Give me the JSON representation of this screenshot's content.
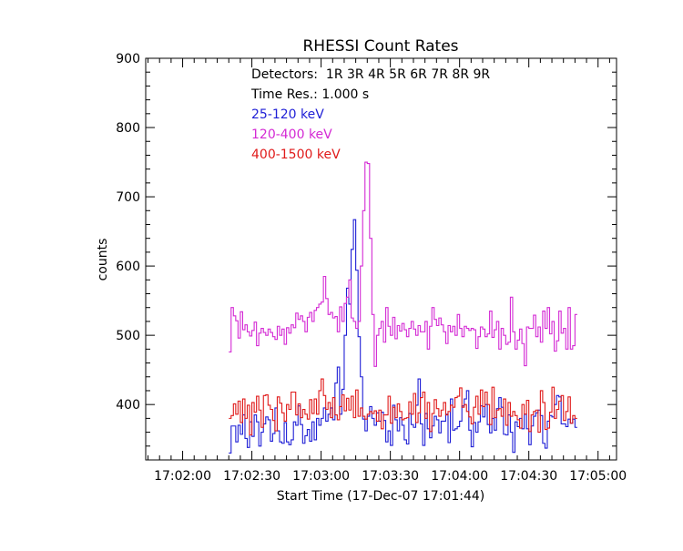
{
  "chart_data": {
    "type": "line",
    "title": "RHESSI Count Rates",
    "xlabel": "Start Time (17-Dec-07 17:01:44)",
    "ylabel": "counts",
    "x_unit": "seconds after 17:01:44",
    "xlim": [
      0,
      204
    ],
    "ylim": [
      320,
      900
    ],
    "x_ticks": [
      {
        "t": 16,
        "label": "17:02:00"
      },
      {
        "t": 46,
        "label": "17:02:30"
      },
      {
        "t": 76,
        "label": "17:03:00"
      },
      {
        "t": 106,
        "label": "17:03:30"
      },
      {
        "t": 136,
        "label": "17:04:00"
      },
      {
        "t": 166,
        "label": "17:04:30"
      },
      {
        "t": 196,
        "label": "17:05:00"
      }
    ],
    "y_ticks": [
      400,
      500,
      600,
      700,
      800,
      900
    ],
    "grid": false,
    "legend_position": "top-left (inside)",
    "annotations": {
      "detectors": "Detectors:  1R 3R 4R 5R 6R 7R 8R 9R",
      "time_res": "Time Res.: 1.000 s"
    },
    "series": [
      {
        "name": "25-120 keV",
        "color": "#1f1fd6",
        "x_start": 36,
        "values": [
          330,
          369,
          369,
          346,
          370,
          357,
          385,
          351,
          338,
          375,
          354,
          385,
          375,
          340,
          360,
          372,
          382,
          378,
          347,
          358,
          395,
          362,
          346,
          344,
          374,
          346,
          342,
          349,
          375,
          370,
          398,
          371,
          344,
          355,
          364,
          347,
          375,
          349,
          380,
          370,
          380,
          395,
          376,
          386,
          395,
          378,
          431,
          454,
          386,
          422,
          500,
          568,
          545,
          624,
          667,
          594,
          498,
          440,
          379,
          362,
          383,
          397,
          380,
          370,
          388,
          376,
          389,
          377,
          346,
          362,
          341,
          399,
          378,
          362,
          381,
          370,
          349,
          343,
          387,
          371,
          367,
          399,
          437,
          372,
          341,
          387,
          365,
          352,
          369,
          383,
          378,
          359,
          376,
          376,
          386,
          345,
          408,
          363,
          365,
          368,
          376,
          398,
          408,
          420,
          363,
          339,
          374,
          360,
          375,
          398,
          382,
          400,
          371,
          359,
          380,
          363,
          394,
          410,
          396,
          357,
          356,
          385,
          360,
          331,
          375,
          368,
          380,
          365,
          386,
          365,
          342,
          369,
          383,
          388,
          392,
          384,
          344,
          337,
          376,
          384,
          382,
          400,
          413,
          411,
          372,
          372,
          368,
          379,
          373,
          379,
          367
        ]
      },
      {
        "name": "120-400 keV",
        "color": "#d42ad4",
        "x_start": 36,
        "values": [
          476,
          540,
          528,
          521,
          496,
          534,
          508,
          515,
          505,
          499,
          507,
          519,
          485,
          503,
          510,
          504,
          500,
          509,
          504,
          498,
          494,
          513,
          500,
          509,
          487,
          511,
          503,
          515,
          511,
          532,
          523,
          528,
          520,
          505,
          526,
          533,
          520,
          536,
          540,
          545,
          548,
          585,
          553,
          530,
          533,
          525,
          527,
          505,
          541,
          520,
          546,
          555,
          580,
          525,
          520,
          510,
          520,
          600,
          680,
          750,
          748,
          640,
          530,
          455,
          500,
          510,
          520,
          490,
          540,
          513,
          500,
          526,
          495,
          514,
          506,
          517,
          508,
          498,
          510,
          520,
          509,
          500,
          514,
          505,
          505,
          520,
          480,
          513,
          540,
          523,
          514,
          525,
          515,
          505,
          488,
          514,
          505,
          513,
          500,
          530,
          510,
          498,
          513,
          510,
          507,
          510,
          508,
          481,
          498,
          512,
          509,
          498,
          502,
          535,
          497,
          508,
          520,
          480,
          510,
          500,
          487,
          490,
          555,
          505,
          480,
          493,
          509,
          488,
          456,
          512,
          510,
          510,
          529,
          498,
          512,
          490,
          535,
          510,
          540,
          502,
          520,
          477,
          492,
          535,
          503,
          510,
          480,
          540,
          480,
          485,
          530
        ]
      },
      {
        "name": "400-1500 keV",
        "color": "#e01a1a",
        "x_start": 36,
        "values": [
          380,
          384,
          401,
          386,
          405,
          374,
          408,
          380,
          399,
          356,
          403,
          389,
          412,
          392,
          367,
          413,
          414,
          399,
          393,
          377,
          362,
          411,
          402,
          388,
          376,
          400,
          393,
          418,
          418,
          385,
          401,
          381,
          393,
          386,
          379,
          407,
          387,
          408,
          386,
          420,
          437,
          413,
          393,
          403,
          381,
          410,
          385,
          378,
          397,
          414,
          391,
          409,
          392,
          412,
          381,
          421,
          383,
          395,
          383,
          379,
          386,
          390,
          387,
          391,
          376,
          392,
          365,
          385,
          385,
          412,
          373,
          396,
          381,
          401,
          390,
          378,
          380,
          381,
          404,
          386,
          416,
          374,
          388,
          410,
          418,
          380,
          403,
          361,
          387,
          407,
          394,
          383,
          392,
          403,
          385,
          390,
          399,
          396,
          410,
          412,
          424,
          396,
          400,
          390,
          382,
          372,
          396,
          412,
          386,
          421,
          397,
          418,
          400,
          371,
          425,
          381,
          392,
          394,
          383,
          408,
          370,
          403,
          383,
          390,
          384,
          378,
          366,
          400,
          386,
          406,
          361,
          385,
          390,
          392,
          360,
          420,
          403,
          364,
          366,
          389,
          425,
          380,
          393,
          405,
          413,
          377,
          390,
          411,
          373,
          384,
          380
        ]
      }
    ]
  }
}
